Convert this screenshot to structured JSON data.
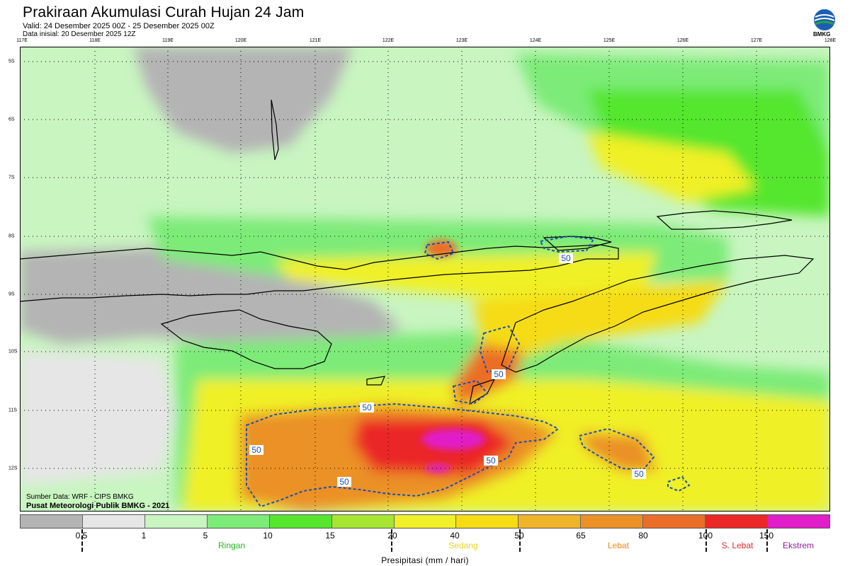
{
  "header": {
    "title": "Prakiraan Akumulasi Curah Hujan 24 Jam",
    "valid": "Valid: 24 Desember 2025 00Z - 25 Desember 2025 00Z",
    "initial": "Data inisial: 20 Desember 2025 12Z",
    "logo_text": "BMKG"
  },
  "map": {
    "lon_labels": [
      "117E",
      "118E",
      "119E",
      "120E",
      "121E",
      "122E",
      "123E",
      "124E",
      "125E",
      "126E",
      "127E",
      "128E"
    ],
    "lat_labels": [
      "5S",
      "6S",
      "7S",
      "8S",
      "9S",
      "10S",
      "11S",
      "12S"
    ],
    "contour_labels": [
      "50",
      "50",
      "50",
      "50",
      "50",
      "50",
      "50"
    ],
    "source_data": "Sumber Data: WRF - CIPS BMKG",
    "source_org": "Pusat Meteorologi Publik BMKG - 2021"
  },
  "legend": {
    "colors": [
      "#b4b4b4",
      "#e6e6e6",
      "#c8f5c0",
      "#7deb78",
      "#55e62d",
      "#a6e630",
      "#f0f028",
      "#f5dc14",
      "#f0b428",
      "#eb9128",
      "#eb6e28",
      "#eb2828",
      "#e11ec8"
    ],
    "ticks": [
      "0.5",
      "1",
      "5",
      "10",
      "15",
      "20",
      "40",
      "50",
      "65",
      "80",
      "100",
      "150"
    ],
    "categories": [
      {
        "label": "Ringan",
        "color": "#22b322"
      },
      {
        "label": "Sedang",
        "color": "#e6d41e"
      },
      {
        "label": "Lebat",
        "color": "#e88a1a"
      },
      {
        "label": "S. Lebat",
        "color": "#e62828"
      },
      {
        "label": "Ekstrem",
        "color": "#8c1e96"
      }
    ],
    "unit": "Presipitasi (mm / hari)"
  }
}
